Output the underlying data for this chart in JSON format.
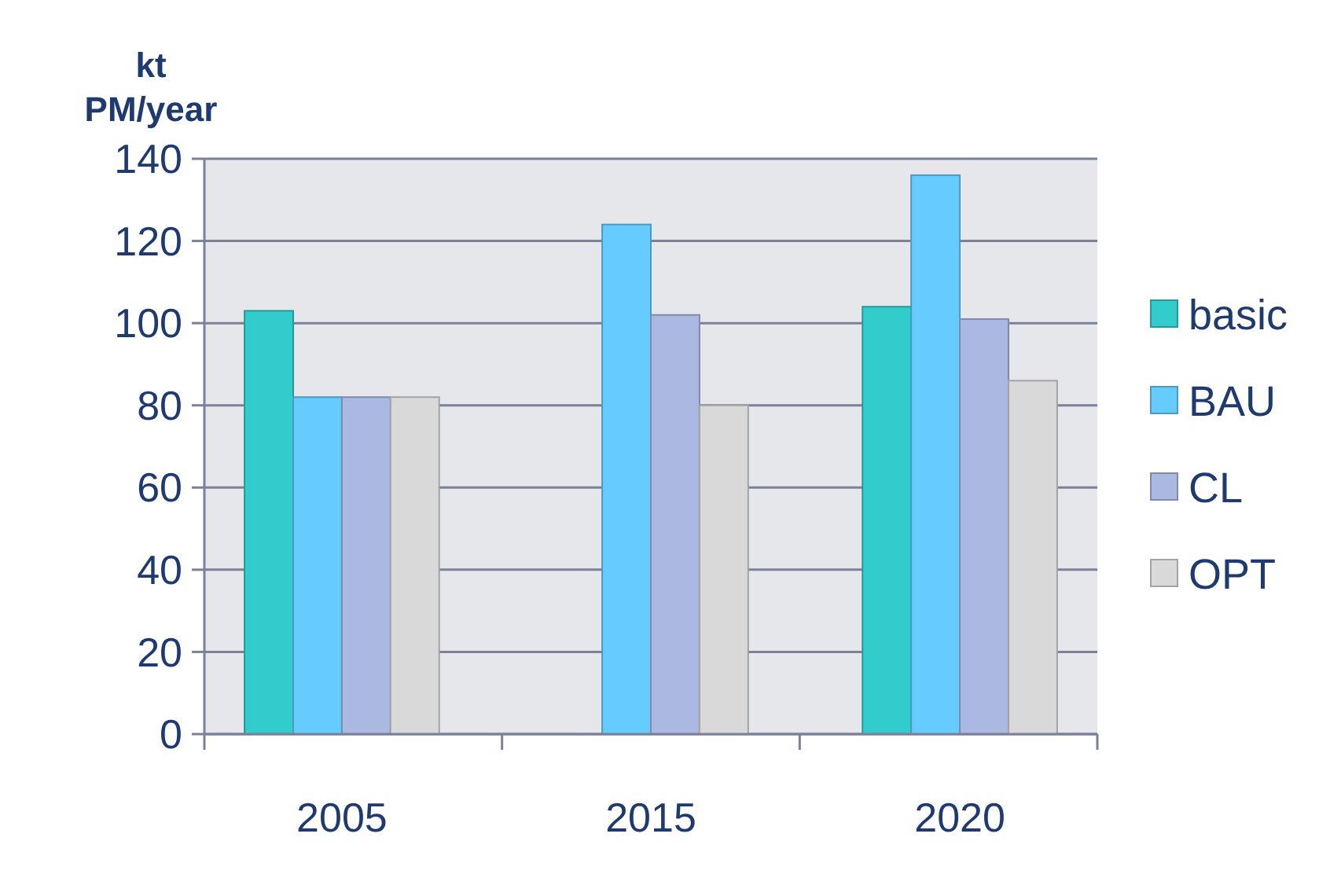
{
  "chart_data": {
    "type": "bar",
    "ylabel": "kt\nPM/year",
    "categories": [
      "2005",
      "2015",
      "2020"
    ],
    "series": [
      {
        "name": "basic",
        "color": "#33cccc",
        "values": [
          103,
          null,
          104
        ]
      },
      {
        "name": "BAU",
        "color": "#66ccff",
        "values": [
          82,
          124,
          136
        ]
      },
      {
        "name": "CL",
        "color": "#aab8e2",
        "values": [
          82,
          102,
          101
        ]
      },
      {
        "name": "OPT",
        "color": "#d9d9d9",
        "values": [
          82,
          80,
          86
        ]
      }
    ],
    "ylim": [
      0,
      140
    ],
    "yticks": [
      0,
      20,
      40,
      60,
      80,
      100,
      120,
      140
    ],
    "grid": "y",
    "legend": "right"
  }
}
